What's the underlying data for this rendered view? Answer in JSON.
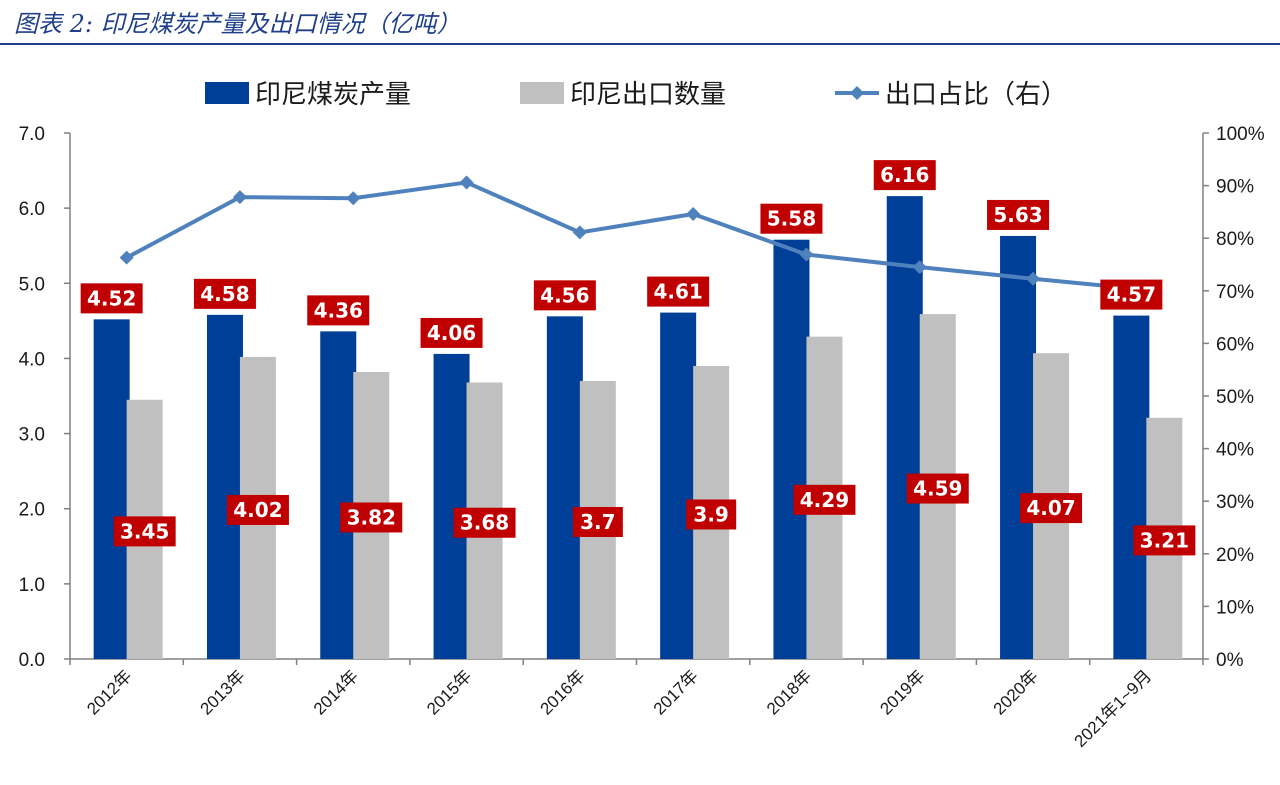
{
  "figure": {
    "title": "图表 2:  印尼煤炭产量及出口情况（亿吨）"
  },
  "chart_data": {
    "type": "bar",
    "categories": [
      "2012年",
      "2013年",
      "2014年",
      "2015年",
      "2016年",
      "2017年",
      "2018年",
      "2019年",
      "2020年",
      "2021年1~9月"
    ],
    "series": [
      {
        "name": "印尼煤炭产量",
        "kind": "bar",
        "axis": "left",
        "color": "#003f98",
        "values": [
          4.52,
          4.58,
          4.36,
          4.06,
          4.56,
          4.61,
          5.58,
          6.16,
          5.63,
          4.57
        ],
        "labels": [
          "4.52",
          "4.58",
          "4.36",
          "4.06",
          "4.56",
          "4.61",
          "5.58",
          "6.16",
          "5.63",
          "4.57"
        ]
      },
      {
        "name": "印尼出口数量",
        "kind": "bar",
        "axis": "left",
        "color": "#c0c0c0",
        "values": [
          3.45,
          4.02,
          3.82,
          3.68,
          3.7,
          3.9,
          4.29,
          4.59,
          4.07,
          3.21
        ],
        "labels": [
          "3.45",
          "4.02",
          "3.82",
          "3.68",
          "3.7",
          "3.9",
          "4.29",
          "4.59",
          "4.07",
          "3.21"
        ]
      },
      {
        "name": "出口占比（右）",
        "kind": "line",
        "axis": "right",
        "color": "#4f81bd",
        "values": [
          76.3,
          87.8,
          87.6,
          90.6,
          81.1,
          84.6,
          76.9,
          74.5,
          72.3,
          70.2
        ]
      }
    ],
    "ylim": [
      0,
      7
    ],
    "y_ticks": [
      "0.0",
      "1.0",
      "2.0",
      "3.0",
      "4.0",
      "5.0",
      "6.0",
      "7.0"
    ],
    "y2lim": [
      0,
      100
    ],
    "y2_ticks": [
      "0%",
      "10%",
      "20%",
      "30%",
      "40%",
      "50%",
      "60%",
      "70%",
      "80%",
      "90%",
      "100%"
    ],
    "label_color": "#c00000",
    "grid": false,
    "legend_position": "top"
  }
}
